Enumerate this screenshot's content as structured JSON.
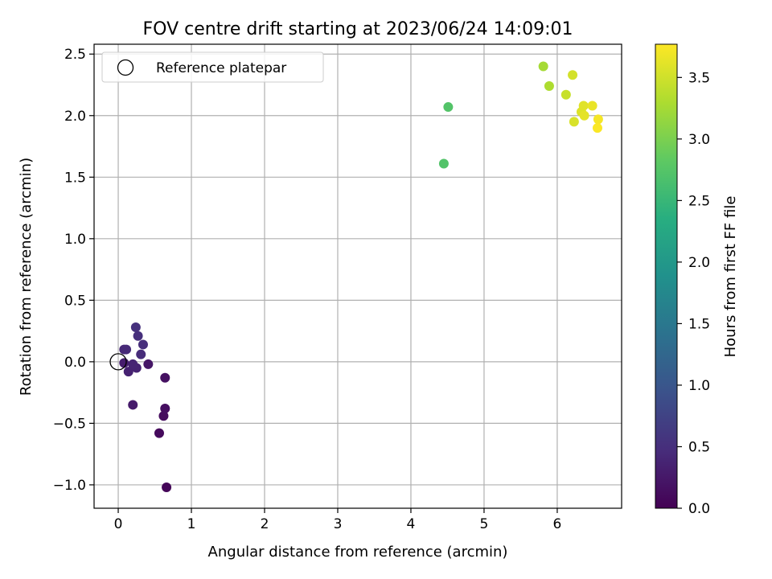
{
  "chart_data": {
    "type": "scatter",
    "title": "FOV centre drift starting at 2023/06/24 14:09:01",
    "xlabel": "Angular distance from reference (arcmin)",
    "ylabel": "Rotation from reference (arcmin)",
    "xlim": [
      -0.33,
      6.88
    ],
    "ylim": [
      -1.19,
      2.58
    ],
    "xticks": [
      0,
      1,
      2,
      3,
      4,
      5,
      6
    ],
    "xtick_labels": [
      "0",
      "1",
      "2",
      "3",
      "4",
      "5",
      "6"
    ],
    "yticks": [
      -1.0,
      -0.5,
      0.0,
      0.5,
      1.0,
      1.5,
      2.0,
      2.5
    ],
    "ytick_labels": [
      "−1.0",
      "−0.5",
      "0.0",
      "0.5",
      "1.0",
      "1.5",
      "2.0",
      "2.5"
    ],
    "grid": true,
    "legend": {
      "placement": "top-left",
      "entries": [
        "Reference platepar"
      ]
    },
    "reference_point": {
      "x": 0,
      "y": 0
    },
    "colorbar": {
      "label": "Hours from first FF file",
      "range": [
        0.0,
        3.77
      ],
      "ticks": [
        0.0,
        0.5,
        1.0,
        1.5,
        2.0,
        2.5,
        3.0,
        3.5
      ],
      "tick_labels": [
        "0.0",
        "0.5",
        "1.0",
        "1.5",
        "2.0",
        "2.5",
        "3.0",
        "3.5"
      ],
      "colormap": "viridis"
    },
    "points": [
      {
        "x": 0.66,
        "y": -1.02,
        "hours": 0.05
      },
      {
        "x": 0.56,
        "y": -0.58,
        "hours": 0.1
      },
      {
        "x": 0.62,
        "y": -0.44,
        "hours": 0.12
      },
      {
        "x": 0.64,
        "y": -0.38,
        "hours": 0.14
      },
      {
        "x": 0.64,
        "y": -0.13,
        "hours": 0.16
      },
      {
        "x": 0.41,
        "y": -0.02,
        "hours": 0.22
      },
      {
        "x": 0.2,
        "y": -0.35,
        "hours": 0.28
      },
      {
        "x": 0.08,
        "y": -0.01,
        "hours": 0.3
      },
      {
        "x": 0.14,
        "y": -0.08,
        "hours": 0.35
      },
      {
        "x": 0.25,
        "y": -0.05,
        "hours": 0.36
      },
      {
        "x": 0.2,
        "y": -0.02,
        "hours": 0.38
      },
      {
        "x": 0.08,
        "y": 0.1,
        "hours": 0.42
      },
      {
        "x": 0.11,
        "y": 0.1,
        "hours": 0.44
      },
      {
        "x": 0.31,
        "y": 0.06,
        "hours": 0.46
      },
      {
        "x": 0.34,
        "y": 0.14,
        "hours": 0.48
      },
      {
        "x": 0.27,
        "y": 0.21,
        "hours": 0.5
      },
      {
        "x": 0.24,
        "y": 0.28,
        "hours": 0.52
      },
      {
        "x": 4.45,
        "y": 1.61,
        "hours": 2.72
      },
      {
        "x": 4.51,
        "y": 2.07,
        "hours": 2.73
      },
      {
        "x": 5.81,
        "y": 2.4,
        "hours": 3.25
      },
      {
        "x": 5.89,
        "y": 2.24,
        "hours": 3.3
      },
      {
        "x": 6.12,
        "y": 2.17,
        "hours": 3.45
      },
      {
        "x": 6.21,
        "y": 2.33,
        "hours": 3.52
      },
      {
        "x": 6.23,
        "y": 1.95,
        "hours": 3.55
      },
      {
        "x": 6.33,
        "y": 2.03,
        "hours": 3.58
      },
      {
        "x": 6.36,
        "y": 2.08,
        "hours": 3.6
      },
      {
        "x": 6.37,
        "y": 2.0,
        "hours": 3.62
      },
      {
        "x": 6.48,
        "y": 2.08,
        "hours": 3.65
      },
      {
        "x": 6.56,
        "y": 1.97,
        "hours": 3.72
      },
      {
        "x": 6.55,
        "y": 1.9,
        "hours": 3.75
      }
    ]
  }
}
